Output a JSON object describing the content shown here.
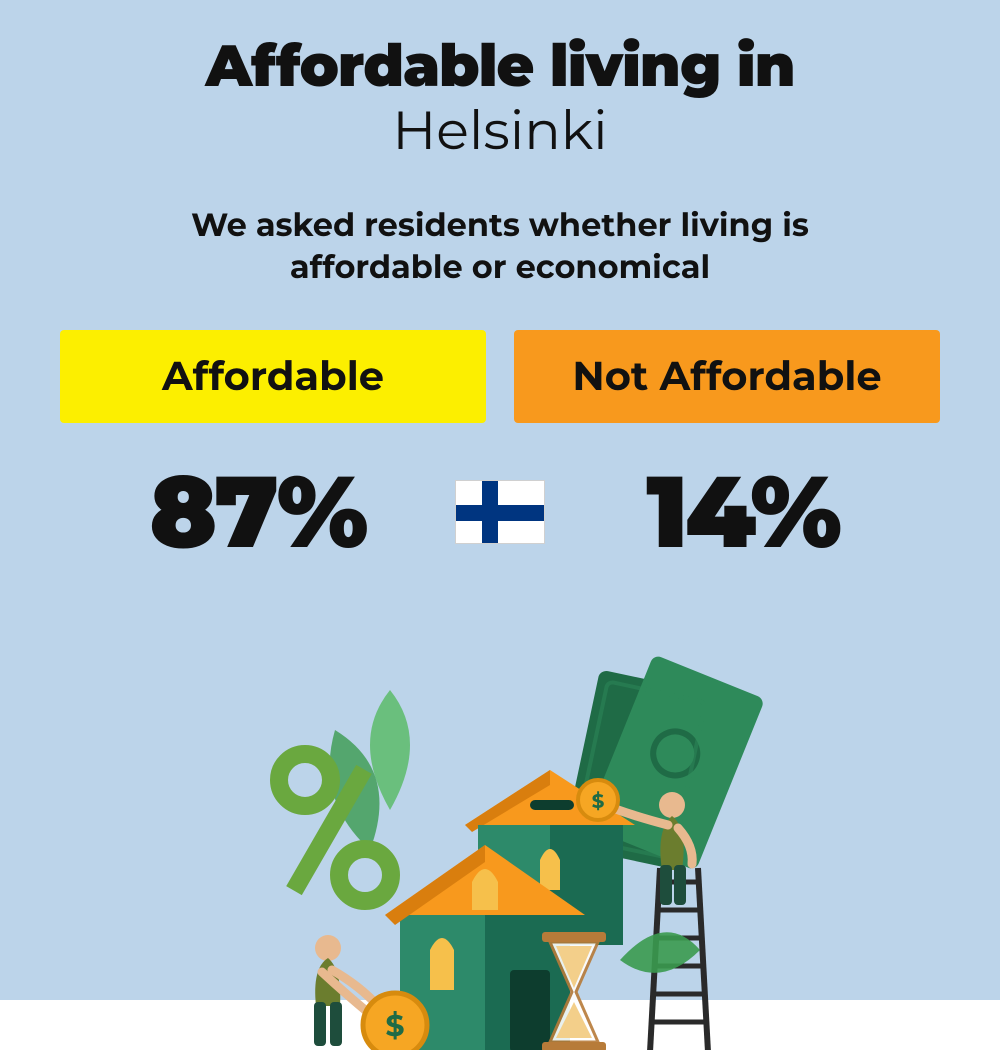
{
  "background_color": "#bcd4ea",
  "text_color": "#111111",
  "title": {
    "line1": "Affordable living in",
    "line2": "Helsinki",
    "line1_weight": 900,
    "line2_weight": 400,
    "fontsize_line1": 58,
    "fontsize_line2": 54
  },
  "subtitle": {
    "text": "We asked residents whether living is affordable or economical",
    "fontsize": 32,
    "weight": 700
  },
  "options": {
    "left": {
      "label": "Affordable",
      "bg_color": "#fcef00",
      "text_color": "#111111",
      "value": "87%"
    },
    "right": {
      "label": "Not Affordable",
      "bg_color": "#f8991d",
      "text_color": "#111111",
      "value": "14%"
    },
    "pill_fontsize": 40,
    "stat_fontsize": 100
  },
  "flag": {
    "name": "finland-flag",
    "bg": "#ffffff",
    "cross_color": "#003580"
  },
  "illustration": {
    "palette": {
      "house_wall": "#1b6b52",
      "house_wall_light": "#2d8a6a",
      "roof": "#f8991d",
      "roof_shadow": "#d97e0e",
      "window": "#f6c04b",
      "leaf": "#3a9a4f",
      "leaf_light": "#5cbb6a",
      "percent": "#6aa83f",
      "bill_dark": "#1f6b46",
      "bill_light": "#2e8a5a",
      "coin": "#f6a623",
      "coin_rim": "#d78b0e",
      "hourglass_frame": "#b77b39",
      "hourglass_sand": "#f3cf8a",
      "skin": "#e8b98f",
      "shirt_olive": "#6b7d2e",
      "pants_dark": "#1e4d3c",
      "ladder": "#2a2a2a"
    }
  }
}
